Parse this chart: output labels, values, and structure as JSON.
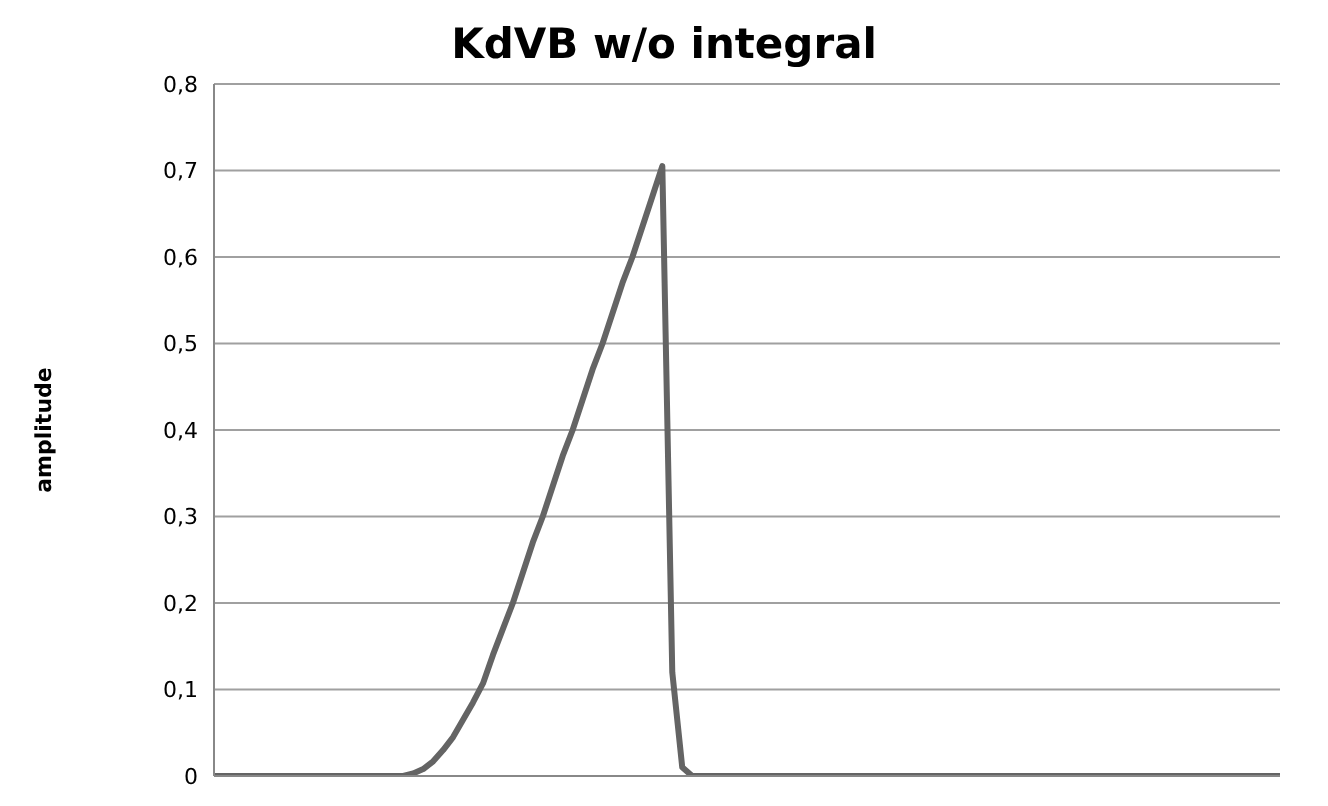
{
  "chart_data": {
    "type": "line",
    "title": "KdVB w/o integral",
    "ylabel": "amplitude",
    "categories": [
      null,
      null,
      null,
      null,
      null,
      null,
      null,
      null,
      null,
      null,
      null,
      null,
      null,
      null,
      null,
      null,
      null,
      null,
      null,
      null,
      null,
      null,
      null,
      null,
      null,
      null,
      null,
      null,
      null,
      null,
      null,
      null,
      null,
      null,
      null,
      null,
      null,
      null,
      null,
      null,
      null,
      null,
      null,
      null,
      null,
      null,
      null,
      null,
      null,
      null,
      null,
      null,
      null,
      null,
      null,
      null,
      null,
      null,
      null,
      null,
      null,
      null,
      null,
      null,
      null,
      null,
      null,
      null,
      null,
      null,
      null,
      null,
      null,
      null,
      null,
      null,
      null,
      null,
      null,
      null,
      null,
      null,
      null,
      null,
      null,
      null,
      null,
      null,
      null,
      null,
      null,
      null,
      null,
      null,
      null,
      null,
      null,
      null,
      null,
      null,
      null,
      null,
      null,
      null,
      null,
      null,
      null,
      null
    ],
    "series": [
      {
        "color": "#646464",
        "values": [
          0,
          0,
          0,
          0,
          0,
          0,
          0,
          0,
          0,
          0,
          0,
          0,
          0,
          0,
          0,
          0,
          0,
          0,
          0,
          0,
          0.003,
          0.008,
          0.017,
          0.03,
          0.045,
          0.065,
          0.085,
          0.107,
          0.14,
          0.17,
          0.2,
          0.235,
          0.27,
          0.3,
          0.335,
          0.37,
          0.4,
          0.435,
          0.47,
          0.5,
          0.535,
          0.57,
          0.6,
          0.635,
          0.67,
          0.705,
          0.12,
          0.01,
          0,
          0,
          0,
          0,
          0,
          0,
          0,
          0,
          0,
          0,
          0,
          0,
          0,
          0,
          0,
          0,
          0,
          0,
          0,
          0,
          0,
          0,
          0,
          0,
          0,
          0,
          0,
          0,
          0,
          0,
          0,
          0,
          0,
          0,
          0,
          0,
          0,
          0,
          0,
          0,
          0,
          0,
          0,
          0,
          0,
          0,
          0,
          0,
          0,
          0,
          0,
          0,
          0,
          0,
          0,
          0,
          0,
          0,
          0,
          0
        ]
      }
    ],
    "ylim": [
      0,
      0.8
    ],
    "yticks": [
      0,
      {
        "value": 0.1,
        "label": "0,1"
      },
      {
        "value": 0.2,
        "label": "0,2"
      },
      {
        "value": 0.3,
        "label": "0,3"
      },
      {
        "value": 0.4,
        "label": "0,4"
      },
      {
        "value": 0.5,
        "label": "0,5"
      },
      {
        "value": 0.6,
        "label": "0,6"
      },
      {
        "value": 0.7,
        "label": "0,7"
      },
      {
        "value": 0.8,
        "label": "0,8"
      }
    ],
    "grid": "y",
    "tick_labels": "y",
    "marker": "none",
    "line_style": "solid",
    "legend": false
  }
}
